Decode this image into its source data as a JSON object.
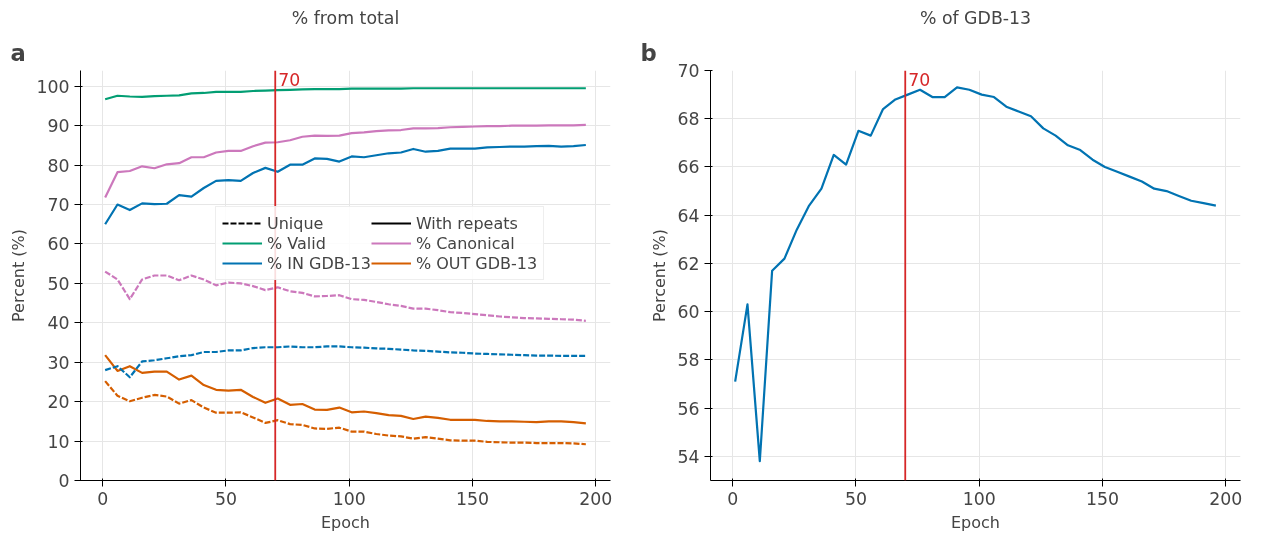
{
  "chart_data": [
    {
      "type": "line",
      "title": "% from total",
      "xlabel": "Epoch",
      "ylabel": "Percent (%)",
      "annotations": [
        "a"
      ],
      "x": [
        1,
        6,
        11,
        16,
        21,
        26,
        31,
        36,
        41,
        46,
        51,
        56,
        61,
        66,
        71,
        76,
        81,
        86,
        91,
        96,
        101,
        106,
        111,
        116,
        121,
        126,
        131,
        136,
        141,
        146,
        151,
        156,
        161,
        166,
        171,
        176,
        181,
        186,
        191,
        196
      ],
      "series": [
        {
          "name": "Unique",
          "color": "#000000",
          "line_style": "dashed",
          "values": [
            null,
            null,
            null,
            null,
            null,
            null,
            null,
            null,
            null,
            null,
            null,
            null,
            null,
            null,
            null,
            null,
            null,
            null,
            null,
            null,
            null,
            null,
            null,
            null,
            null,
            null,
            null,
            null,
            null,
            null,
            null,
            null,
            null,
            null,
            null,
            null,
            null,
            null,
            null,
            null
          ]
        },
        {
          "name": "% Valid",
          "color": "#029e73",
          "line_style": "solid",
          "values": [
            96.7,
            97.6,
            97.4,
            97.3,
            97.5,
            97.6,
            97.7,
            98.2,
            98.3,
            98.6,
            98.6,
            98.6,
            98.8,
            98.9,
            99.0,
            99.1,
            99.2,
            99.3,
            99.3,
            99.3,
            99.4,
            99.4,
            99.4,
            99.4,
            99.4,
            99.5,
            99.5,
            99.5,
            99.5,
            99.5,
            99.5,
            99.5,
            99.5,
            99.5,
            99.5,
            99.5,
            99.5,
            99.5,
            99.5,
            99.5
          ]
        },
        {
          "name": "% IN GDB-13",
          "color": "#0173b2",
          "line_style": "solid",
          "values": [
            65.0,
            70.0,
            68.6,
            70.3,
            70.1,
            70.2,
            72.4,
            72.0,
            74.2,
            76.0,
            76.2,
            76.0,
            78.0,
            79.3,
            78.3,
            80.1,
            80.1,
            81.7,
            81.6,
            80.9,
            82.2,
            82.0,
            82.5,
            83.0,
            83.2,
            84.1,
            83.4,
            83.6,
            84.2,
            84.2,
            84.2,
            84.5,
            84.6,
            84.7,
            84.7,
            84.8,
            84.9,
            84.7,
            84.8,
            85.1
          ]
        },
        {
          "name": "With repeats",
          "color": "#000000",
          "line_style": "solid",
          "values": [
            null,
            null,
            null,
            null,
            null,
            null,
            null,
            null,
            null,
            null,
            null,
            null,
            null,
            null,
            null,
            null,
            null,
            null,
            null,
            null,
            null,
            null,
            null,
            null,
            null,
            null,
            null,
            null,
            null,
            null,
            null,
            null,
            null,
            null,
            null,
            null,
            null,
            null,
            null,
            null
          ]
        },
        {
          "name": "% Canonical",
          "color": "#cc78bc",
          "line_style": "solid",
          "values": [
            71.8,
            78.2,
            78.5,
            79.7,
            79.2,
            80.2,
            80.5,
            82.0,
            82.0,
            83.2,
            83.6,
            83.6,
            84.8,
            85.7,
            85.8,
            86.3,
            87.2,
            87.5,
            87.4,
            87.5,
            88.1,
            88.3,
            88.6,
            88.8,
            88.9,
            89.3,
            89.3,
            89.4,
            89.6,
            89.7,
            89.8,
            89.9,
            89.9,
            90.0,
            90.0,
            90.0,
            90.1,
            90.1,
            90.1,
            90.2
          ]
        },
        {
          "name": "% OUT GDB-13",
          "color": "#d55e00",
          "line_style": "solid",
          "values": [
            31.8,
            27.8,
            29.0,
            27.3,
            27.6,
            27.6,
            25.6,
            26.6,
            24.2,
            23.0,
            22.8,
            23.0,
            21.2,
            19.7,
            20.8,
            19.2,
            19.4,
            18.0,
            17.9,
            18.5,
            17.3,
            17.5,
            17.1,
            16.6,
            16.4,
            15.6,
            16.2,
            15.9,
            15.4,
            15.4,
            15.4,
            15.1,
            15.0,
            15.0,
            14.9,
            14.8,
            15.0,
            15.0,
            14.8,
            14.5
          ]
        },
        {
          "color": "#cc78bc",
          "line_style": "dashed",
          "values": [
            53.0,
            51.0,
            46.0,
            51.0,
            52.0,
            52.0,
            50.8,
            52.0,
            51.0,
            49.5,
            50.2,
            50.0,
            49.3,
            48.3,
            49.0,
            48.0,
            47.6,
            46.7,
            46.8,
            47.0,
            46.0,
            45.8,
            45.3,
            44.7,
            44.3,
            43.6,
            43.6,
            43.2,
            42.7,
            42.5,
            42.2,
            41.9,
            41.6,
            41.4,
            41.2,
            41.1,
            41.0,
            40.9,
            40.8,
            40.5
          ]
        },
        {
          "color": "#0173b2",
          "line_style": "dashed",
          "values": [
            28.0,
            29.0,
            26.2,
            30.2,
            30.5,
            31.0,
            31.5,
            31.8,
            32.6,
            32.6,
            33.0,
            33.0,
            33.6,
            33.8,
            33.8,
            34.0,
            33.8,
            33.8,
            34.0,
            34.0,
            33.8,
            33.7,
            33.5,
            33.4,
            33.2,
            33.0,
            32.9,
            32.7,
            32.5,
            32.4,
            32.2,
            32.1,
            32.0,
            31.9,
            31.8,
            31.7,
            31.7,
            31.6,
            31.6,
            31.6
          ]
        },
        {
          "color": "#d55e00",
          "line_style": "dashed",
          "values": [
            25.2,
            21.5,
            20.1,
            21.0,
            21.7,
            21.3,
            19.5,
            20.4,
            18.5,
            17.2,
            17.2,
            17.3,
            16.0,
            14.6,
            15.3,
            14.3,
            14.1,
            13.2,
            13.1,
            13.4,
            12.4,
            12.4,
            11.8,
            11.4,
            11.2,
            10.6,
            11.0,
            10.6,
            10.2,
            10.1,
            10.1,
            9.8,
            9.7,
            9.6,
            9.6,
            9.5,
            9.5,
            9.5,
            9.4,
            9.2
          ]
        }
      ],
      "xlim": [
        -9,
        206
      ],
      "xticks": [
        0,
        50,
        100,
        150,
        200
      ],
      "ylim": [
        0,
        104
      ],
      "yticks": [
        0,
        10,
        20,
        30,
        40,
        50,
        60,
        70,
        80,
        90,
        100
      ],
      "ref_lines": [
        {
          "axis": "x",
          "value": 70,
          "label": "70",
          "color": "#d62728"
        }
      ],
      "grid": true,
      "legend": "right"
    },
    {
      "type": "line",
      "title": "% of GDB-13",
      "xlabel": "Epoch",
      "ylabel": "Percent (%)",
      "annotations": [
        "b"
      ],
      "x": [
        1,
        6,
        11,
        16,
        21,
        26,
        31,
        36,
        41,
        46,
        51,
        56,
        61,
        66,
        71,
        76,
        81,
        86,
        91,
        96,
        101,
        106,
        111,
        116,
        121,
        126,
        131,
        136,
        141,
        146,
        151,
        156,
        161,
        166,
        171,
        176,
        181,
        186,
        191,
        196
      ],
      "series": [
        {
          "color": "#0173b2",
          "values": [
            57.1,
            60.3,
            53.8,
            61.7,
            62.2,
            63.4,
            64.4,
            65.1,
            66.5,
            66.1,
            67.5,
            67.3,
            68.4,
            68.8,
            69.0,
            69.2,
            68.9,
            68.9,
            69.3,
            69.2,
            69.0,
            68.9,
            68.5,
            68.3,
            68.1,
            67.6,
            67.3,
            66.9,
            66.7,
            66.3,
            66.0,
            65.8,
            65.6,
            65.4,
            65.1,
            65.0,
            64.8,
            64.6,
            64.5,
            64.4
          ]
        }
      ],
      "xlim": [
        -9,
        206
      ],
      "xticks": [
        0,
        50,
        100,
        150,
        200
      ],
      "ylim": [
        53,
        70
      ],
      "yticks": [
        54,
        56,
        58,
        60,
        62,
        64,
        66,
        68,
        70
      ],
      "ref_lines": [
        {
          "axis": "x",
          "value": 70,
          "label": "70",
          "color": "#d62728"
        }
      ],
      "grid": true
    }
  ]
}
